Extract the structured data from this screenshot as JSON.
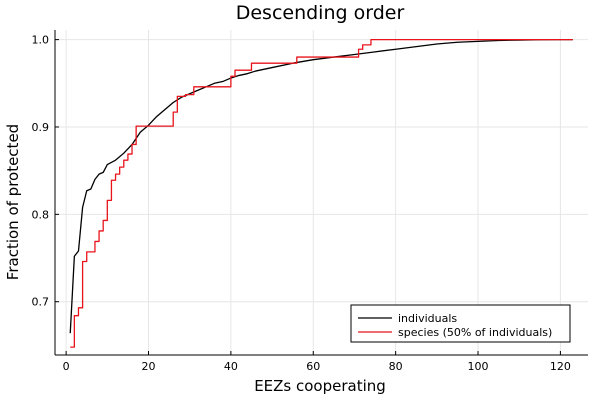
{
  "chart_data": {
    "type": "line",
    "title": "Descending order",
    "xlabel": "EEZs cooperating",
    "ylabel": "Fraction of protected",
    "xlim": [
      -2.7,
      126.7
    ],
    "ylim": [
      0.639,
      1.011
    ],
    "xticks": [
      0,
      20,
      40,
      60,
      80,
      100,
      120
    ],
    "yticks": [
      0.7,
      0.8,
      0.9,
      1.0
    ],
    "xtick_labels": [
      "0",
      "20",
      "40",
      "60",
      "80",
      "100",
      "120"
    ],
    "ytick_labels": [
      "0.7",
      "0.8",
      "0.9",
      "1.0"
    ],
    "grid": true,
    "legend_position": "bottom-right",
    "series": [
      {
        "name": "individuals",
        "color": "#000000",
        "step": false,
        "x": [
          1,
          2,
          3,
          4,
          5,
          6,
          7,
          8,
          9,
          10,
          12,
          14,
          16,
          18,
          20,
          22,
          24,
          26,
          28,
          30,
          32,
          34,
          36,
          38,
          40,
          42,
          44,
          46,
          48,
          50,
          55,
          60,
          65,
          70,
          75,
          80,
          85,
          90,
          95,
          100,
          105,
          110,
          115,
          120,
          123
        ],
        "y": [
          0.664,
          0.752,
          0.758,
          0.808,
          0.827,
          0.829,
          0.84,
          0.846,
          0.848,
          0.857,
          0.862,
          0.87,
          0.88,
          0.894,
          0.902,
          0.912,
          0.92,
          0.928,
          0.934,
          0.938,
          0.942,
          0.946,
          0.95,
          0.952,
          0.956,
          0.959,
          0.961,
          0.964,
          0.966,
          0.968,
          0.973,
          0.977,
          0.98,
          0.983,
          0.986,
          0.989,
          0.992,
          0.995,
          0.997,
          0.998,
          0.999,
          0.9995,
          0.9998,
          1.0,
          1.0
        ]
      },
      {
        "name": "species (50% of individuals)",
        "color": "#e8141b",
        "step": true,
        "x": [
          1,
          2,
          3,
          4,
          5,
          7,
          8,
          9,
          10,
          11,
          12,
          13,
          14,
          15,
          16,
          17,
          20,
          24,
          26,
          27,
          29,
          31,
          33,
          37,
          40,
          41,
          42,
          45,
          47,
          51,
          56,
          63,
          68,
          71,
          72,
          74,
          123
        ],
        "y": [
          0.648,
          0.684,
          0.693,
          0.746,
          0.757,
          0.769,
          0.781,
          0.793,
          0.816,
          0.839,
          0.846,
          0.854,
          0.862,
          0.869,
          0.88,
          0.901,
          0.901,
          0.901,
          0.917,
          0.935,
          0.937,
          0.946,
          0.946,
          0.946,
          0.958,
          0.965,
          0.965,
          0.973,
          0.973,
          0.973,
          0.98,
          0.98,
          0.98,
          0.989,
          0.994,
          1.0,
          1.0
        ]
      }
    ]
  }
}
